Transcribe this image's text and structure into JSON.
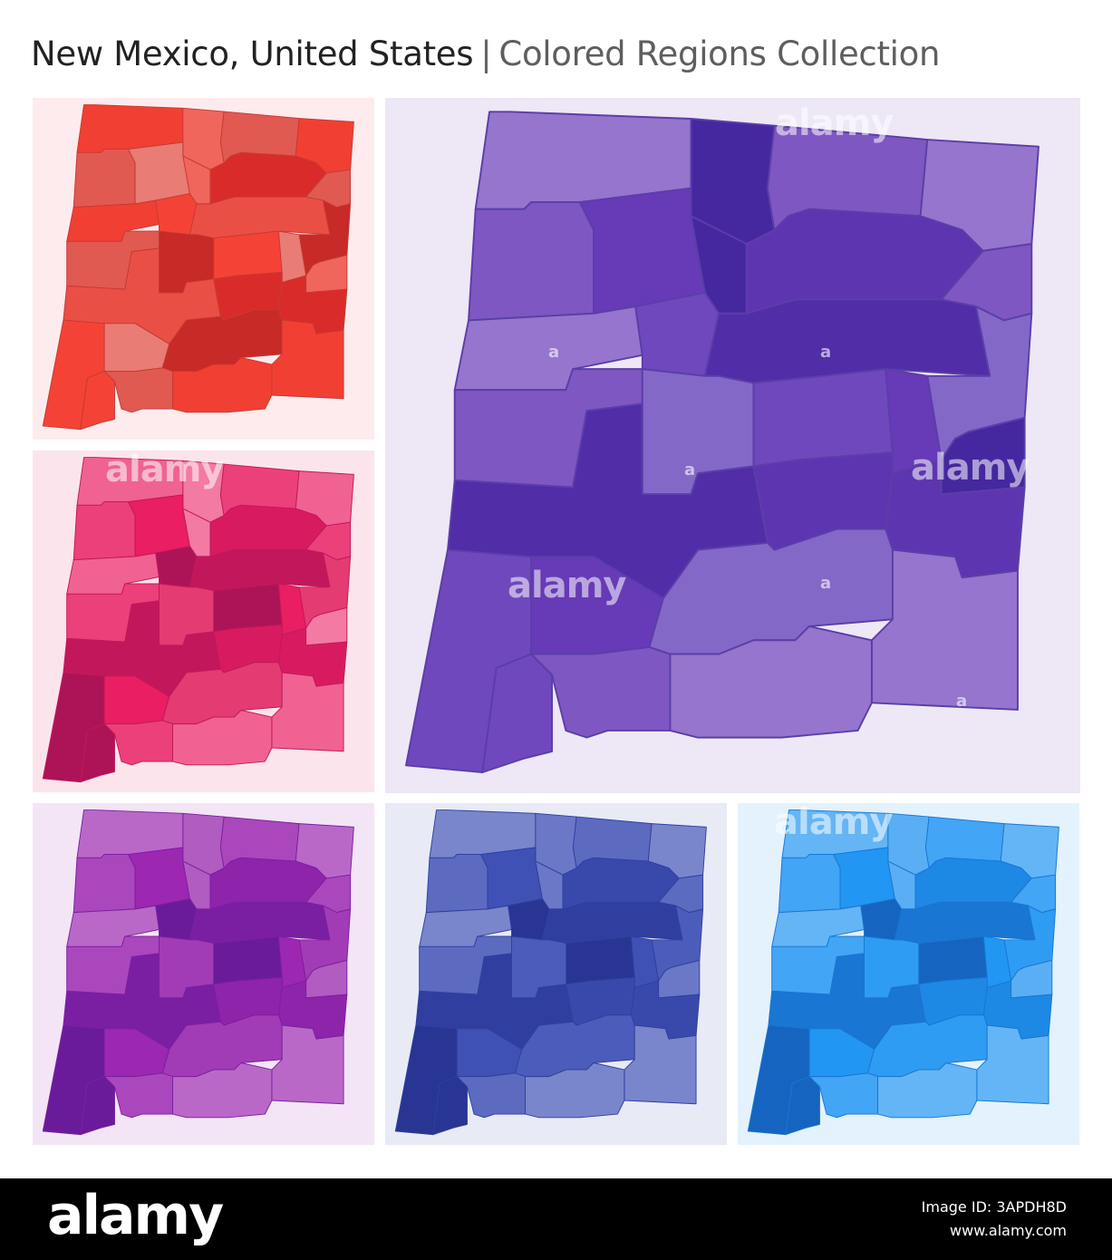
{
  "header": {
    "title": "New Mexico, United States",
    "separator": "|",
    "subtitle": "Colored Regions Collection"
  },
  "panels": [
    {
      "id": "red",
      "name": "map-panel-red",
      "bg": "#fdebee",
      "fills": [
        "#f23f33",
        "#e05a52",
        "#e97c75",
        "#d92c2a",
        "#ea4f46",
        "#f0655c",
        "#c72a27",
        "#f44336"
      ],
      "stroke": "#c63a33"
    },
    {
      "id": "violet",
      "name": "map-panel-violet",
      "bg": "#ede7f6",
      "fills": [
        "#9575cd",
        "#7e57c2",
        "#673ab7",
        "#5e35b1",
        "#512da8",
        "#4527a0",
        "#8468c8",
        "#6f48bd"
      ],
      "stroke": "#5b3ea8"
    },
    {
      "id": "pink",
      "name": "map-panel-pink",
      "bg": "#fce4ec",
      "fills": [
        "#f06292",
        "#ec407a",
        "#e91e63",
        "#d81b60",
        "#c2185b",
        "#f37aa3",
        "#e43b72",
        "#ad1457"
      ],
      "stroke": "#c2185b"
    },
    {
      "id": "purple",
      "name": "map-panel-purple",
      "bg": "#f3e5f5",
      "fills": [
        "#ba68c8",
        "#ab47bc",
        "#9c27b0",
        "#8e24aa",
        "#7b1fa2",
        "#b05cc0",
        "#a23bb6",
        "#6a1b9a"
      ],
      "stroke": "#7b1fa2"
    },
    {
      "id": "indigo",
      "name": "map-panel-indigo",
      "bg": "#e8eaf6",
      "fills": [
        "#7986cb",
        "#5c6bc0",
        "#3f51b5",
        "#3949ab",
        "#303f9f",
        "#6a78c7",
        "#4b5cba",
        "#283593"
      ],
      "stroke": "#303f9f"
    },
    {
      "id": "blue",
      "name": "map-panel-blue",
      "bg": "#e3f2fd",
      "fills": [
        "#64b5f6",
        "#42a5f5",
        "#2196f3",
        "#1e88e5",
        "#1976d2",
        "#5aaff4",
        "#2e9cf3",
        "#1565c0"
      ],
      "stroke": "#1976d2"
    }
  ],
  "watermark": {
    "logo": "alamy",
    "letter": "a"
  },
  "footer": {
    "logo": "alamy",
    "image_id": "Image ID: 3APDH8D",
    "url": "www.alamy.com"
  }
}
